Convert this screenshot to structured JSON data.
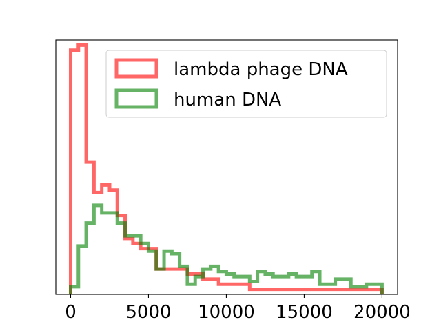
{
  "chart_data": {
    "type": "histogram",
    "histtype": "step",
    "x_ticks": [
      0,
      5000,
      10000,
      15000,
      20000
    ],
    "x_tick_labels": [
      "0",
      "5000",
      "10000",
      "15000",
      "20000"
    ],
    "xlim": [
      -950,
      21000
    ],
    "ylim": [
      0,
      1.0
    ],
    "y_ticks_visible": false,
    "legend_location": "upper right",
    "bin_edges": [
      0,
      500,
      1000,
      1500,
      2000,
      2500,
      3000,
      3500,
      4000,
      4500,
      5000,
      5500,
      6000,
      6500,
      7000,
      7500,
      8000,
      8500,
      9000,
      9500,
      10000,
      10500,
      11000,
      11500,
      12000,
      12500,
      13000,
      13500,
      14000,
      14500,
      15000,
      15500,
      16000,
      16500,
      17000,
      17500,
      18000,
      18500,
      19000,
      19500,
      20000
    ],
    "series": [
      {
        "name": "lambda phage DNA",
        "color": "#ff0000",
        "alpha": 0.6,
        "values": [
          0.96,
          0.98,
          0.52,
          0.4,
          0.43,
          0.41,
          0.31,
          0.22,
          0.2,
          0.18,
          0.18,
          0.1,
          0.1,
          0.1,
          0.1,
          0.08,
          0.08,
          0.06,
          0.06,
          0.04,
          0.04,
          0.04,
          0.04,
          0.02,
          0.02,
          0.02,
          0.02,
          0.02,
          0.02,
          0.02,
          0.02,
          0.02,
          0.02,
          0.02,
          0.02,
          0.02,
          0.02,
          0.02,
          0.02,
          0.02
        ]
      },
      {
        "name": "human DNA",
        "color": "#008000",
        "alpha": 0.6,
        "values": [
          0.03,
          0.19,
          0.28,
          0.35,
          0.32,
          0.32,
          0.28,
          0.23,
          0.23,
          0.2,
          0.17,
          0.1,
          0.17,
          0.16,
          0.11,
          0.04,
          0.07,
          0.1,
          0.11,
          0.09,
          0.08,
          0.07,
          0.07,
          0.05,
          0.09,
          0.08,
          0.07,
          0.07,
          0.08,
          0.07,
          0.07,
          0.09,
          0.04,
          0.04,
          0.06,
          0.06,
          0.03,
          0.03,
          0.04,
          0.04
        ]
      }
    ]
  }
}
